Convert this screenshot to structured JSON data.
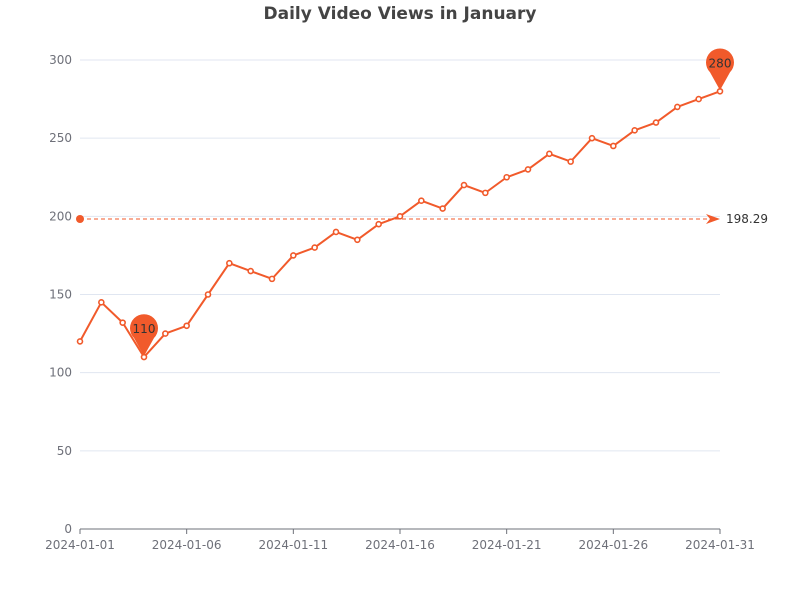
{
  "chart_data": {
    "type": "line",
    "title": "Daily Video Views in January",
    "xlabel": "",
    "ylabel": "",
    "x": [
      "2024-01-01",
      "2024-01-02",
      "2024-01-03",
      "2024-01-04",
      "2024-01-05",
      "2024-01-06",
      "2024-01-07",
      "2024-01-08",
      "2024-01-09",
      "2024-01-10",
      "2024-01-11",
      "2024-01-12",
      "2024-01-13",
      "2024-01-14",
      "2024-01-15",
      "2024-01-16",
      "2024-01-17",
      "2024-01-18",
      "2024-01-19",
      "2024-01-20",
      "2024-01-21",
      "2024-01-22",
      "2024-01-23",
      "2024-01-24",
      "2024-01-25",
      "2024-01-26",
      "2024-01-27",
      "2024-01-28",
      "2024-01-29",
      "2024-01-30",
      "2024-01-31"
    ],
    "x_tick_labels": [
      "2024-01-01",
      "2024-01-06",
      "2024-01-11",
      "2024-01-16",
      "2024-01-21",
      "2024-01-26",
      "2024-01-31"
    ],
    "series": [
      {
        "values": [
          120,
          145,
          132,
          110,
          125,
          130,
          150,
          170,
          165,
          160,
          175,
          180,
          190,
          185,
          195,
          200,
          210,
          205,
          220,
          215,
          225,
          230,
          240,
          235,
          250,
          245,
          255,
          260,
          270,
          275,
          280
        ]
      }
    ],
    "ylim": [
      0,
      300
    ],
    "y_ticks": [
      0,
      50,
      100,
      150,
      200,
      250,
      300
    ],
    "grid": true,
    "markers": {
      "max": {
        "label": "280",
        "date": "2024-01-31",
        "value": 280
      },
      "min": {
        "label": "110",
        "date": "2024-01-04",
        "value": 110
      }
    },
    "average_line": {
      "value": 198.29,
      "label": "198.29"
    },
    "colors": {
      "series": "#f15a2b",
      "marker": "#f15a2b",
      "grid": "#e0e6f1",
      "axis": "#6e7079"
    }
  }
}
